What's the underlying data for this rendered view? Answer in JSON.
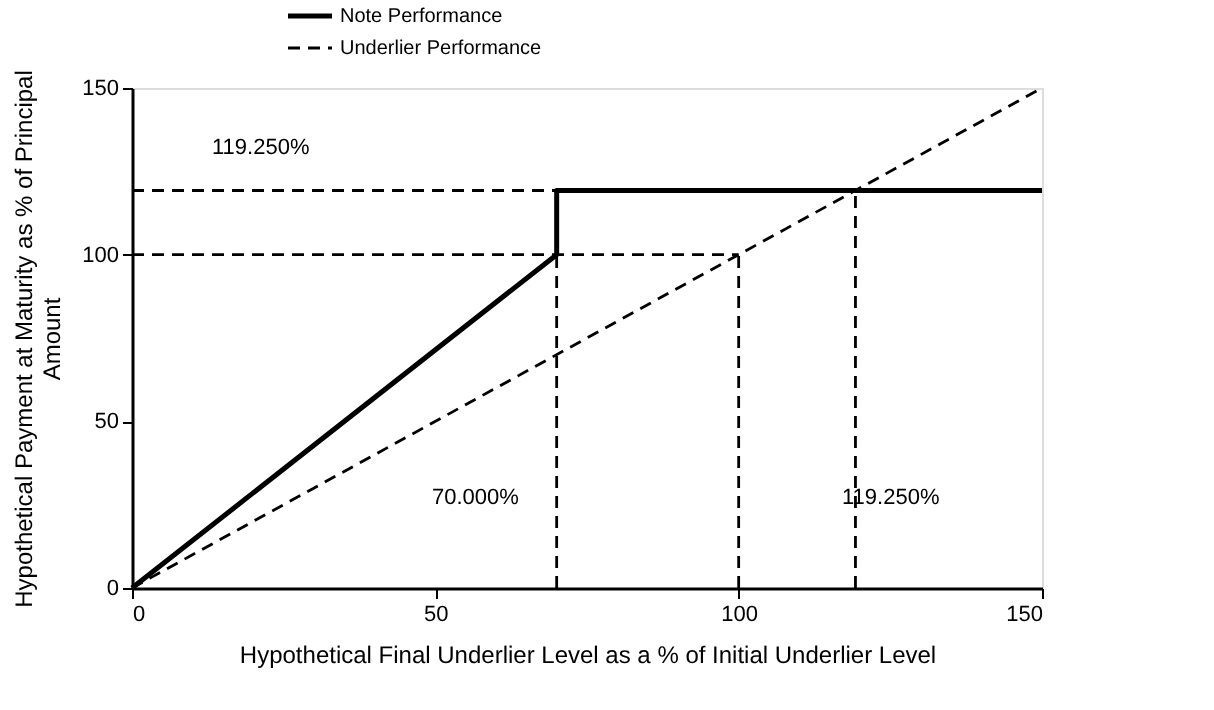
{
  "chart_data": {
    "type": "line",
    "xlabel": "Hypothetical Final Underlier Level as a % of Initial Underlier Level",
    "ylabel": "Hypothetical Payment at Maturity as % of Principal Amount",
    "xlim": [
      0,
      150
    ],
    "ylim": [
      0,
      150
    ],
    "xticks": [
      0,
      50,
      100,
      150
    ],
    "yticks": [
      0,
      50,
      100,
      150
    ],
    "grid": false,
    "legend": "top",
    "marker": "none",
    "series": [
      {
        "name": "Note Performance",
        "color": "#000000",
        "line_style": "solid",
        "x": [
          0,
          70,
          70,
          150
        ],
        "values": [
          0,
          100,
          119.25,
          119.25
        ]
      },
      {
        "name": "Underlier Performance",
        "color": "#000000",
        "line_style": "dashed",
        "x": [
          0,
          150
        ],
        "values": [
          0,
          150
        ]
      },
      {
        "color": "#000000",
        "line_style": "dashed",
        "x": [
          0,
          70
        ],
        "values": [
          119.25,
          119.25
        ]
      },
      {
        "color": "#000000",
        "line_style": "dashed",
        "x": [
          0,
          100
        ],
        "values": [
          100,
          100
        ]
      },
      {
        "color": "#000000",
        "line_style": "dashed",
        "x": [
          70,
          70
        ],
        "values": [
          0,
          100
        ]
      },
      {
        "color": "#000000",
        "line_style": "dashed",
        "x": [
          100,
          100
        ],
        "values": [
          0,
          100
        ]
      },
      {
        "color": "#000000",
        "line_style": "dashed",
        "x": [
          119.25,
          119.25
        ],
        "values": [
          0,
          119.25
        ]
      }
    ],
    "annotations": [
      "119.250%",
      "70.000%",
      "119.250%"
    ]
  }
}
